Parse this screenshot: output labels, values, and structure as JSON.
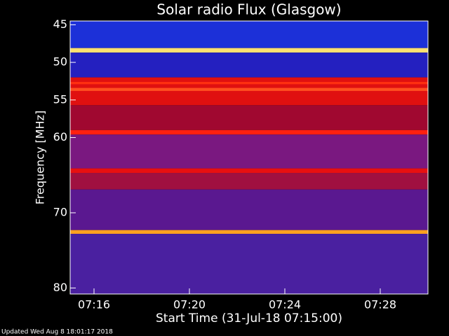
{
  "chart_data": {
    "type": "spectrogram",
    "title": "Solar radio Flux (Glasgow)",
    "ylabel": "Frequency [MHz]",
    "xlabel": "Start Time (31-Jul-18 07:15:00)",
    "footer": "Updated Wed Aug  8 18:01:17 2018",
    "xlim": [
      "07:15",
      "07:30"
    ],
    "xticks": [
      "07:16",
      "07:20",
      "07:24",
      "07:28"
    ],
    "ylim": [
      44.5,
      80.8
    ],
    "yticks": [
      45,
      50,
      55,
      60,
      70,
      80
    ],
    "y_inverted": true,
    "bands": [
      {
        "freq": [
          44.5,
          48.1
        ],
        "color": "#1c30d8"
      },
      {
        "freq": [
          48.1,
          48.7
        ],
        "color": "#ffe070"
      },
      {
        "freq": [
          48.7,
          52.0
        ],
        "color": "#2420c0"
      },
      {
        "freq": [
          52.0,
          55.7
        ],
        "color": "#e01010"
      },
      {
        "freq": [
          52.6,
          52.9
        ],
        "color": "#ff3010"
      },
      {
        "freq": [
          53.4,
          53.8
        ],
        "color": "#ff5020"
      },
      {
        "freq": [
          55.7,
          59.0
        ],
        "color": "#a00830"
      },
      {
        "freq": [
          59.0,
          59.6
        ],
        "color": "#ff2010"
      },
      {
        "freq": [
          59.6,
          64.1
        ],
        "color": "#7a1880"
      },
      {
        "freq": [
          64.1,
          64.7
        ],
        "color": "#e81010"
      },
      {
        "freq": [
          64.7,
          66.9
        ],
        "color": "#a01040"
      },
      {
        "freq": [
          66.9,
          72.3
        ],
        "color": "#5a1890"
      },
      {
        "freq": [
          72.3,
          72.8
        ],
        "color": "#ffa020"
      },
      {
        "freq": [
          72.8,
          80.8
        ],
        "color": "#4a20a0"
      }
    ]
  }
}
